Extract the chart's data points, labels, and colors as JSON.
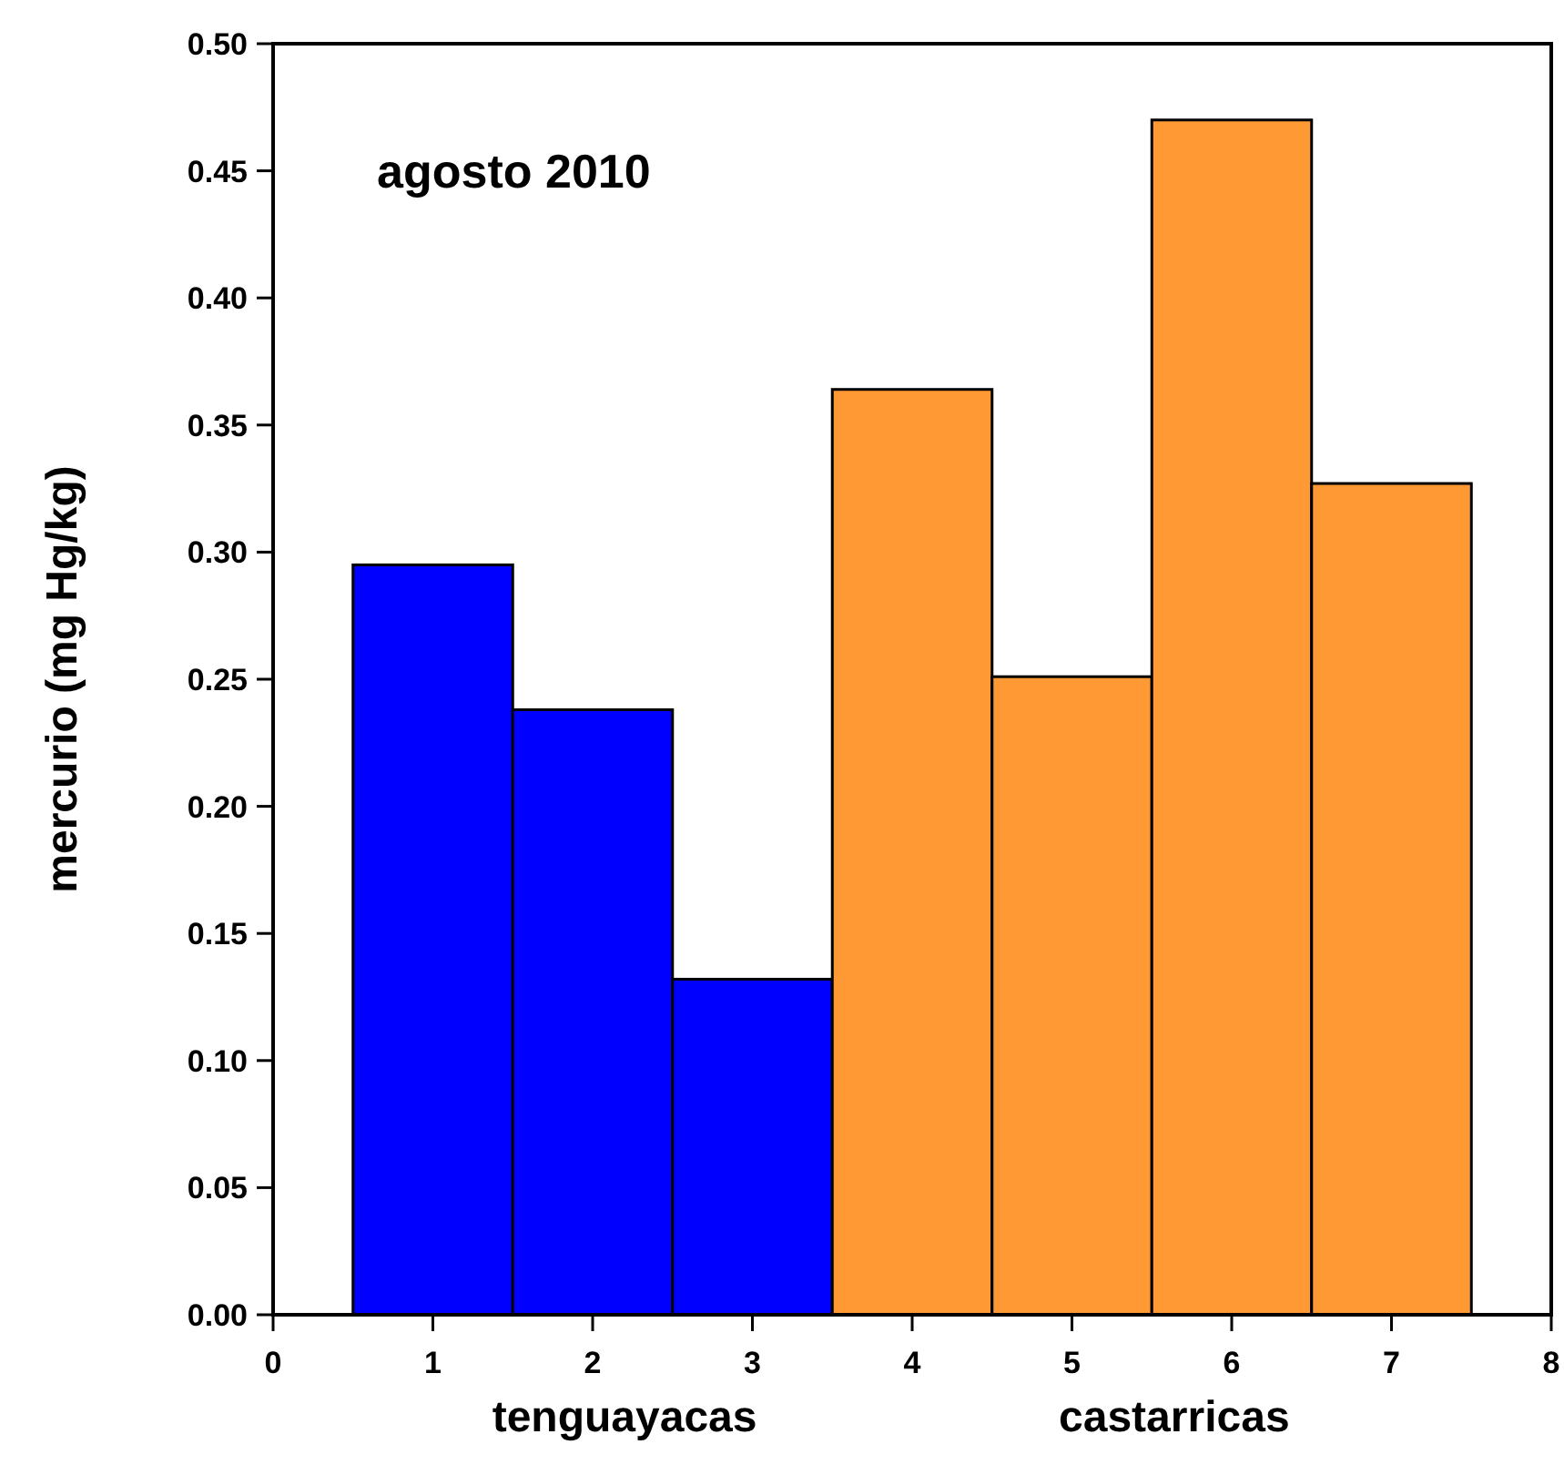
{
  "chart_data": {
    "type": "bar",
    "title": "agosto 2010",
    "ylabel": "mercurio (mg Hg/kg)",
    "x": [
      1,
      2,
      3,
      4,
      5,
      6,
      7
    ],
    "values": [
      0.295,
      0.238,
      0.132,
      0.364,
      0.251,
      0.47,
      0.327
    ],
    "colors": [
      "#0000ff",
      "#0000ff",
      "#0000ff",
      "#ff9933",
      "#ff9933",
      "#ff9933",
      "#ff9933"
    ],
    "xlim": [
      0,
      8
    ],
    "xticks": [
      0,
      1,
      2,
      3,
      4,
      5,
      6,
      7,
      8
    ],
    "ylim": [
      0,
      0.5
    ],
    "yticks": [
      {
        "value": 0,
        "label": "0.00"
      },
      {
        "value": 0.05,
        "label": "0.05"
      },
      {
        "value": 0.1,
        "label": "0.10"
      },
      {
        "value": 0.15,
        "label": "0.15"
      },
      {
        "value": 0.2,
        "label": "0.20"
      },
      {
        "value": 0.25,
        "label": "0.25"
      },
      {
        "value": 0.3,
        "label": "0.30"
      },
      {
        "value": 0.35,
        "label": "0.35"
      },
      {
        "value": 0.4,
        "label": "0.40"
      },
      {
        "value": 0.45,
        "label": "0.45"
      },
      {
        "value": 0.5,
        "label": "0.50"
      }
    ],
    "annotations": [
      "tenguayacas",
      "castarricas"
    ],
    "grid": false
  }
}
